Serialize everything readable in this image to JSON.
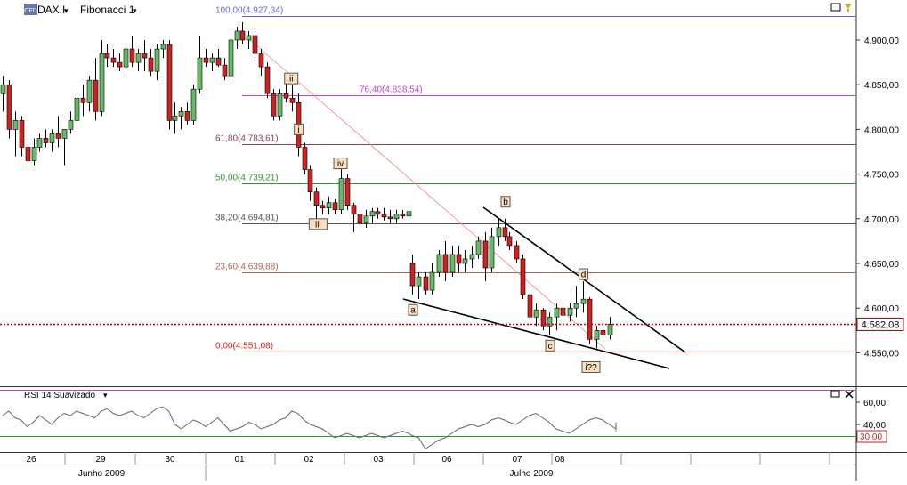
{
  "header": {
    "symbol_badge": "CFD",
    "symbol": "DAX.I",
    "symbol_menu": "▾",
    "study": "Fibonacci 1",
    "study_menu": "▾"
  },
  "fib_levels": [
    {
      "label": "100,00(4.927,34)",
      "price": 4927.34,
      "color": "#6666dd",
      "label_x": 242
    },
    {
      "label": "76,40(4.838,54)",
      "price": 4838.54,
      "color": "#cc44cc",
      "label_x": 404
    },
    {
      "label": "61,80(4.783,61)",
      "price": 4783.61,
      "color": "#884455",
      "label_x": 242
    },
    {
      "label": "50,00(4.739,21)",
      "price": 4739.21,
      "color": "#339933",
      "label_x": 242
    },
    {
      "label": "38,20(4.694,81)",
      "price": 4694.81,
      "color": "#555555",
      "label_x": 242
    },
    {
      "label": "23,60(4.639,88)",
      "price": 4639.88,
      "color": "#aa6655",
      "label_x": 242
    },
    {
      "label": "0,00(4.551,08)",
      "price": 4551.08,
      "color": "#dd2222",
      "label_x": 242
    }
  ],
  "price_axis": {
    "ticks": [
      "4.900,00",
      "4.850,00",
      "4.800,00",
      "4.750,00",
      "4.700,00",
      "4.650,00",
      "4.600,00",
      "4.550,00"
    ],
    "tick_values": [
      4900,
      4850,
      4800,
      4750,
      4700,
      4650,
      4600,
      4550
    ],
    "current_price_label": "4.582,08",
    "current_price": 4582.08
  },
  "wave_labels": [
    {
      "text": "i",
      "price": 4798
    },
    {
      "text": "ii",
      "price": 4855
    },
    {
      "text": "iii",
      "price": 4692
    },
    {
      "text": "iv",
      "price": 4760
    },
    {
      "text": "a",
      "price": 4596
    },
    {
      "text": "b",
      "price": 4717
    },
    {
      "text": "c",
      "price": 4556
    },
    {
      "text": "d",
      "price": 4636
    },
    {
      "text": "i??",
      "price": 4532
    }
  ],
  "rsi": {
    "title": "RSI 14 Suavizado",
    "menu": "▾",
    "ticks": [
      "60,00",
      "40,00"
    ],
    "threshold_label": "30,00",
    "threshold": 30
  },
  "time_axis": {
    "days": [
      "26",
      "29",
      "30",
      "01",
      "02",
      "03",
      "06",
      "07",
      "08"
    ],
    "months": [
      "Junho 2009",
      "Julho 2009"
    ]
  },
  "chart_data": {
    "type": "candlestick",
    "title": "",
    "symbol": "DAX.I",
    "x_categories": [
      "26",
      "29",
      "30",
      "01",
      "02",
      "03",
      "06",
      "07",
      "08"
    ],
    "y_range": [
      4520,
      4950
    ],
    "ohlc": [
      [
        4840,
        4860,
        4820,
        4850
      ],
      [
        4850,
        4855,
        4790,
        4800
      ],
      [
        4800,
        4820,
        4770,
        4810
      ],
      [
        4810,
        4815,
        4770,
        4780
      ],
      [
        4780,
        4790,
        4755,
        4765
      ],
      [
        4765,
        4790,
        4760,
        4780
      ],
      [
        4780,
        4795,
        4775,
        4790
      ],
      [
        4790,
        4800,
        4780,
        4785
      ],
      [
        4785,
        4800,
        4775,
        4795
      ],
      [
        4795,
        4815,
        4780,
        4790
      ],
      [
        4790,
        4800,
        4760,
        4800
      ],
      [
        4800,
        4820,
        4795,
        4810
      ],
      [
        4810,
        4840,
        4800,
        4835
      ],
      [
        4835,
        4850,
        4815,
        4830
      ],
      [
        4830,
        4860,
        4820,
        4855
      ],
      [
        4855,
        4880,
        4810,
        4820
      ],
      [
        4820,
        4900,
        4815,
        4885
      ],
      [
        4885,
        4895,
        4870,
        4880
      ],
      [
        4880,
        4890,
        4870,
        4875
      ],
      [
        4875,
        4885,
        4865,
        4870
      ],
      [
        4870,
        4895,
        4860,
        4890
      ],
      [
        4890,
        4905,
        4870,
        4875
      ],
      [
        4875,
        4890,
        4865,
        4885
      ],
      [
        4885,
        4900,
        4865,
        4880
      ],
      [
        4880,
        4890,
        4860,
        4865
      ],
      [
        4865,
        4895,
        4855,
        4890
      ],
      [
        4890,
        4900,
        4880,
        4895
      ],
      [
        4895,
        4900,
        4800,
        4810
      ],
      [
        4810,
        4830,
        4795,
        4815
      ],
      [
        4815,
        4825,
        4800,
        4820
      ],
      [
        4820,
        4830,
        4805,
        4810
      ],
      [
        4810,
        4850,
        4805,
        4845
      ],
      [
        4845,
        4905,
        4840,
        4880
      ],
      [
        4880,
        4890,
        4870,
        4875
      ],
      [
        4875,
        4885,
        4865,
        4880
      ],
      [
        4880,
        4890,
        4870,
        4872
      ],
      [
        4872,
        4880,
        4855,
        4860
      ],
      [
        4860,
        4905,
        4855,
        4900
      ],
      [
        4900,
        4915,
        4890,
        4910
      ],
      [
        4910,
        4920,
        4895,
        4900
      ],
      [
        4900,
        4910,
        4890,
        4905
      ],
      [
        4905,
        4910,
        4880,
        4885
      ],
      [
        4885,
        4890,
        4860,
        4870
      ],
      [
        4870,
        4875,
        4835,
        4840
      ],
      [
        4840,
        4845,
        4810,
        4815
      ],
      [
        4815,
        4845,
        4810,
        4840
      ],
      [
        4840,
        4855,
        4830,
        4835
      ],
      [
        4835,
        4850,
        4820,
        4830
      ],
      [
        4830,
        4840,
        4770,
        4780
      ],
      [
        4780,
        4785,
        4750,
        4755
      ],
      [
        4755,
        4760,
        4720,
        4730
      ],
      [
        4730,
        4735,
        4700,
        4715
      ],
      [
        4715,
        4720,
        4705,
        4712
      ],
      [
        4712,
        4725,
        4705,
        4718
      ],
      [
        4718,
        4722,
        4705,
        4710
      ],
      [
        4710,
        4760,
        4705,
        4745
      ],
      [
        4745,
        4750,
        4710,
        4715
      ],
      [
        4715,
        4718,
        4685,
        4705
      ],
      [
        4705,
        4712,
        4690,
        4695
      ],
      [
        4695,
        4710,
        4690,
        4703
      ],
      [
        4703,
        4712,
        4695,
        4708
      ],
      [
        4708,
        4712,
        4700,
        4705
      ],
      [
        4705,
        4712,
        4698,
        4702
      ],
      [
        4702,
        4710,
        4695,
        4700
      ],
      [
        4700,
        4710,
        4695,
        4705
      ],
      [
        4705,
        4710,
        4700,
        4703
      ],
      [
        4703,
        4712,
        4700,
        4708
      ],
      [
        4650,
        4660,
        4615,
        4625
      ],
      [
        4625,
        4640,
        4610,
        4635
      ],
      [
        4635,
        4640,
        4615,
        4620
      ],
      [
        4620,
        4650,
        4615,
        4640
      ],
      [
        4640,
        4665,
        4635,
        4660
      ],
      [
        4660,
        4675,
        4630,
        4640
      ],
      [
        4640,
        4670,
        4635,
        4660
      ],
      [
        4660,
        4670,
        4640,
        4650
      ],
      [
        4650,
        4665,
        4640,
        4655
      ],
      [
        4655,
        4670,
        4645,
        4660
      ],
      [
        4660,
        4680,
        4655,
        4675
      ],
      [
        4675,
        4685,
        4630,
        4645
      ],
      [
        4645,
        4690,
        4640,
        4680
      ],
      [
        4680,
        4700,
        4670,
        4690
      ],
      [
        4690,
        4700,
        4675,
        4680
      ],
      [
        4680,
        4685,
        4665,
        4670
      ],
      [
        4670,
        4675,
        4650,
        4655
      ],
      [
        4655,
        4660,
        4610,
        4615
      ],
      [
        4615,
        4620,
        4580,
        4590
      ],
      [
        4590,
        4605,
        4580,
        4598
      ],
      [
        4598,
        4600,
        4575,
        4580
      ],
      [
        4580,
        4595,
        4570,
        4590
      ],
      [
        4590,
        4605,
        4575,
        4600
      ],
      [
        4600,
        4610,
        4585,
        4592
      ],
      [
        4592,
        4605,
        4585,
        4600
      ],
      [
        4600,
        4625,
        4590,
        4605
      ],
      [
        4605,
        4630,
        4595,
        4610
      ],
      [
        4610,
        4612,
        4560,
        4565
      ],
      [
        4565,
        4580,
        4555,
        4575
      ],
      [
        4575,
        4585,
        4565,
        4570
      ],
      [
        4570,
        4590,
        4565,
        4582
      ]
    ],
    "fibonacci": [
      {
        "level": "100,00",
        "price": 4927.34
      },
      {
        "level": "76,40",
        "price": 4838.54
      },
      {
        "level": "61,80",
        "price": 4783.61
      },
      {
        "level": "50,00",
        "price": 4739.21
      },
      {
        "level": "38,20",
        "price": 4694.81
      },
      {
        "level": "23,60",
        "price": 4639.88
      },
      {
        "level": "0,00",
        "price": 4551.08
      }
    ],
    "rsi_series": [
      48,
      52,
      46,
      44,
      38,
      42,
      48,
      44,
      40,
      46,
      50,
      48,
      52,
      50,
      48,
      46,
      52,
      54,
      50,
      48,
      50,
      52,
      48,
      46,
      50,
      54,
      56,
      52,
      40,
      36,
      40,
      44,
      42,
      38,
      42,
      46,
      40,
      34,
      36,
      38,
      42,
      40,
      36,
      38,
      40,
      44,
      46,
      52,
      50,
      44,
      40,
      38,
      36,
      32,
      28,
      30,
      32,
      30,
      28,
      30,
      32,
      30,
      28,
      30,
      32,
      34,
      32,
      30,
      28,
      18,
      22,
      26,
      28,
      32,
      36,
      38,
      40,
      38,
      40,
      44,
      46,
      44,
      42,
      40,
      44,
      48,
      50,
      46,
      42,
      36,
      34,
      32,
      36,
      40,
      44,
      46,
      44,
      40,
      36,
      34,
      36,
      40,
      42
    ]
  }
}
